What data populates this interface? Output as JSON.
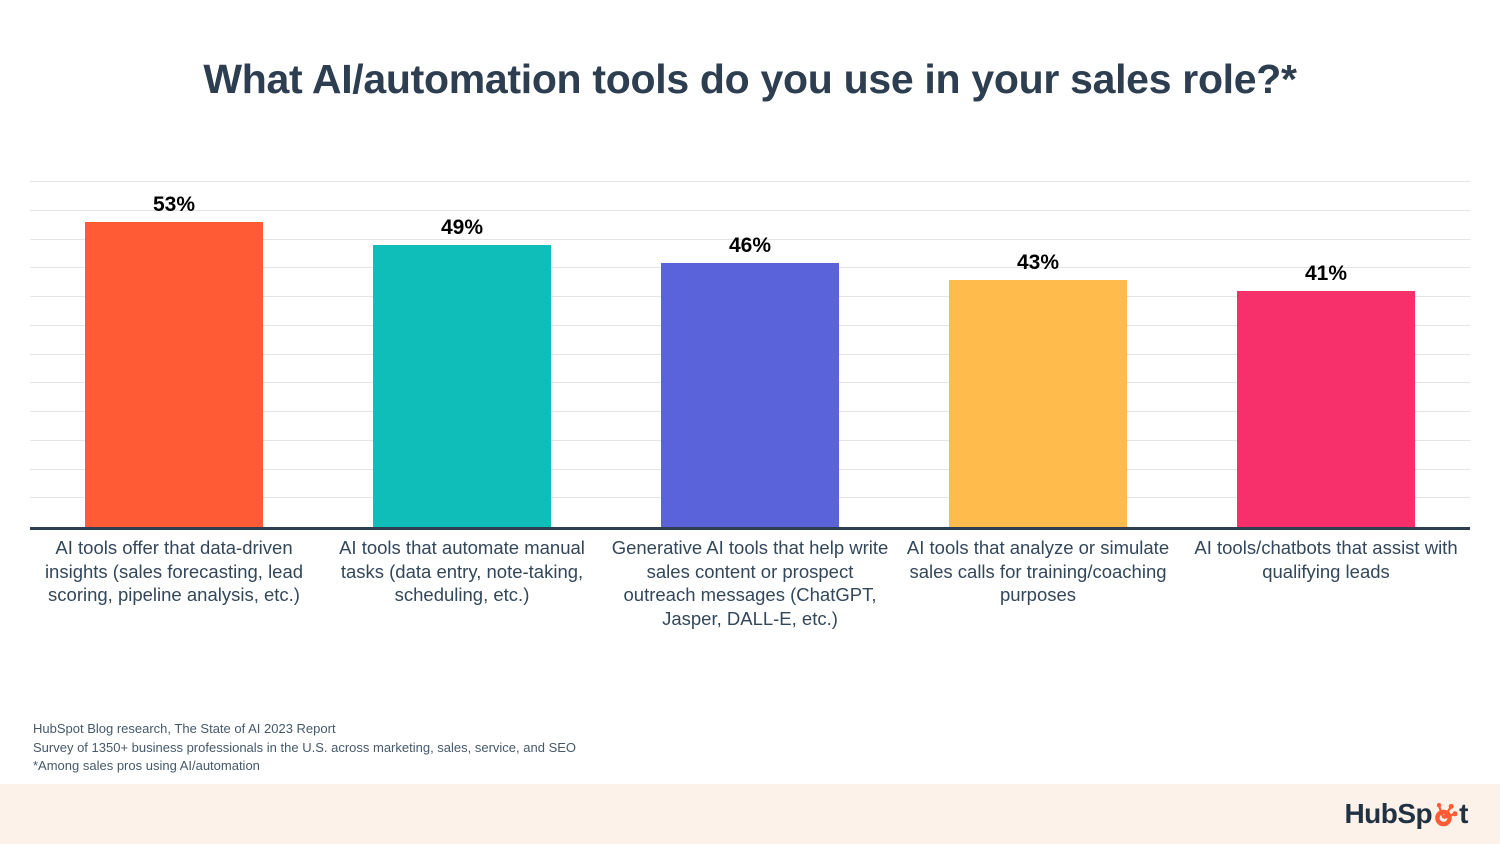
{
  "title": "What AI/automation tools do you use in your sales role?*",
  "chart_data": {
    "type": "bar",
    "title": "What AI/automation tools do you use in your sales role?*",
    "categories": [
      "AI tools offer that data-driven insights (sales forecasting, lead scoring, pipeline analysis, etc.)",
      "AI tools that automate manual tasks (data entry, note-taking, scheduling, etc.)",
      "Generative AI tools that help write sales content or prospect outreach messages (ChatGPT, Jasper, DALL-E, etc.)",
      "AI tools that analyze or simulate sales calls for training/coaching purposes",
      "AI tools/chatbots that assist with qualifying leads"
    ],
    "values": [
      53,
      49,
      46,
      43,
      41
    ],
    "value_labels": [
      "53%",
      "49%",
      "46%",
      "43%",
      "41%"
    ],
    "bar_colors": [
      "#FF5C35",
      "#0FBEB9",
      "#5B63DB",
      "#FFBC4D",
      "#F72F6A"
    ],
    "xlabel": "",
    "ylabel": "",
    "ylim": [
      0,
      60
    ],
    "gridline_step": 5,
    "grid": true,
    "legend": "none"
  },
  "footnotes": [
    "HubSpot Blog research, The State of AI 2023 Report",
    "Survey of 1350+ business professionals in the U.S. across marketing, sales, service, and SEO",
    "*Among sales pros using AI/automation"
  ],
  "footer": {
    "brand_name": "HubSpot",
    "brand_prefix": "HubSp",
    "brand_suffix": "t"
  },
  "colors": {
    "title_text": "#2D3E50",
    "category_text": "#33475B",
    "data_label_text": "#000000",
    "gridline": "#E4E4E6",
    "axis_line": "#2D3E50",
    "footnote_text": "#45596B",
    "footer_background": "#FDF2E9",
    "logo_text": "#213343",
    "logo_sprocket": "#FF5C35"
  }
}
